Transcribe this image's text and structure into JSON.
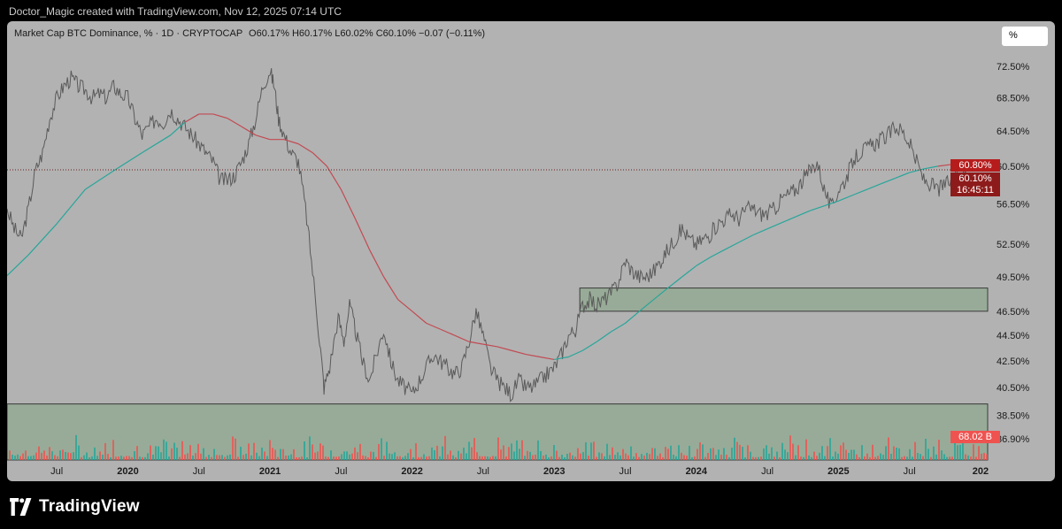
{
  "attribution": "Doctor_Magic created with TradingView.com, Nov 12, 2025 07:14 UTC",
  "legend": {
    "title": "Market Cap BTC Dominance, % · 1D · CRYPTOCAP",
    "ohlc": "O60.17% H60.17% L60.02% C60.10% −0.07 (−0.11%)"
  },
  "scale_button": "%",
  "price_tags": {
    "ma_value": "60.80%",
    "last_value": "60.10%",
    "countdown": "16:45:11",
    "volume_value": "68.02 B"
  },
  "footer": {
    "brand": "TradingView"
  },
  "colors": {
    "background": "#b2b2b2",
    "price_line": "#5a5a5a",
    "ma_up": "#26a69a",
    "ma_down": "#c24a52",
    "zone_fill": "#8fa88f",
    "tag_red": "#b71c1c",
    "vol_up": "#26a69a",
    "vol_down": "#ef5350"
  },
  "chart_data": {
    "type": "line",
    "title": "Market Cap BTC Dominance, % · 1D · CRYPTOCAP",
    "y_scale": "log",
    "ylim": [
      35.5,
      75
    ],
    "xlim": [
      2019.15,
      2026.05
    ],
    "y_ticks": [
      "72.50%",
      "68.50%",
      "64.50%",
      "60.50%",
      "56.50%",
      "52.50%",
      "49.50%",
      "46.50%",
      "44.50%",
      "42.50%",
      "40.50%",
      "38.50%",
      "36.90%"
    ],
    "y_tick_values": [
      72.5,
      68.5,
      64.5,
      60.5,
      56.5,
      52.5,
      49.5,
      46.5,
      44.5,
      42.5,
      40.5,
      38.5,
      36.9
    ],
    "x_ticks": [
      {
        "label": "Jul",
        "t": 2019.5,
        "bold": false
      },
      {
        "label": "2020",
        "t": 2020.0,
        "bold": true
      },
      {
        "label": "Jul",
        "t": 2020.5,
        "bold": false
      },
      {
        "label": "2021",
        "t": 2021.0,
        "bold": true
      },
      {
        "label": "Jul",
        "t": 2021.5,
        "bold": false
      },
      {
        "label": "2022",
        "t": 2022.0,
        "bold": true
      },
      {
        "label": "Jul",
        "t": 2022.5,
        "bold": false
      },
      {
        "label": "2023",
        "t": 2023.0,
        "bold": true
      },
      {
        "label": "Jul",
        "t": 2023.5,
        "bold": false
      },
      {
        "label": "2024",
        "t": 2024.0,
        "bold": true
      },
      {
        "label": "Jul",
        "t": 2024.5,
        "bold": false
      },
      {
        "label": "2025",
        "t": 2025.0,
        "bold": true
      },
      {
        "label": "Jul",
        "t": 2025.5,
        "bold": false
      },
      {
        "label": "202",
        "t": 2026.0,
        "bold": true
      }
    ],
    "last_price": 60.1,
    "price": [
      [
        2019.15,
        56
      ],
      [
        2019.2,
        54
      ],
      [
        2019.25,
        53
      ],
      [
        2019.3,
        56
      ],
      [
        2019.35,
        60
      ],
      [
        2019.4,
        62
      ],
      [
        2019.45,
        66
      ],
      [
        2019.5,
        68.5
      ],
      [
        2019.55,
        70
      ],
      [
        2019.6,
        71
      ],
      [
        2019.65,
        70
      ],
      [
        2019.7,
        69.5
      ],
      [
        2019.75,
        68.5
      ],
      [
        2019.8,
        69
      ],
      [
        2019.85,
        68.5
      ],
      [
        2019.9,
        70
      ],
      [
        2019.95,
        69
      ],
      [
        2020.0,
        68.5
      ],
      [
        2020.05,
        66
      ],
      [
        2020.1,
        64
      ],
      [
        2020.15,
        65
      ],
      [
        2020.2,
        66
      ],
      [
        2020.25,
        65.5
      ],
      [
        2020.3,
        67
      ],
      [
        2020.35,
        66
      ],
      [
        2020.4,
        65
      ],
      [
        2020.45,
        64
      ],
      [
        2020.5,
        63
      ],
      [
        2020.55,
        62
      ],
      [
        2020.6,
        61
      ],
      [
        2020.65,
        59
      ],
      [
        2020.7,
        59
      ],
      [
        2020.75,
        59.5
      ],
      [
        2020.8,
        61
      ],
      [
        2020.85,
        63
      ],
      [
        2020.9,
        66
      ],
      [
        2020.95,
        70
      ],
      [
        2021.0,
        72
      ],
      [
        2021.03,
        70
      ],
      [
        2021.06,
        66
      ],
      [
        2021.1,
        64
      ],
      [
        2021.15,
        62
      ],
      [
        2021.2,
        61
      ],
      [
        2021.25,
        56
      ],
      [
        2021.3,
        50
      ],
      [
        2021.35,
        44
      ],
      [
        2021.38,
        40.5
      ],
      [
        2021.42,
        42
      ],
      [
        2021.48,
        46
      ],
      [
        2021.52,
        44
      ],
      [
        2021.56,
        47
      ],
      [
        2021.6,
        45
      ],
      [
        2021.65,
        42.5
      ],
      [
        2021.7,
        41
      ],
      [
        2021.75,
        43
      ],
      [
        2021.8,
        45
      ],
      [
        2021.85,
        42.5
      ],
      [
        2021.9,
        41
      ],
      [
        2021.95,
        40.5
      ],
      [
        2022.0,
        40
      ],
      [
        2022.05,
        41
      ],
      [
        2022.1,
        42
      ],
      [
        2022.15,
        43
      ],
      [
        2022.2,
        42.5
      ],
      [
        2022.25,
        42
      ],
      [
        2022.3,
        41.5
      ],
      [
        2022.35,
        42
      ],
      [
        2022.4,
        44
      ],
      [
        2022.45,
        46.5
      ],
      [
        2022.5,
        44.5
      ],
      [
        2022.55,
        42
      ],
      [
        2022.6,
        41
      ],
      [
        2022.65,
        40.5
      ],
      [
        2022.7,
        40
      ],
      [
        2022.75,
        41
      ],
      [
        2022.8,
        40.5
      ],
      [
        2022.85,
        40.5
      ],
      [
        2022.9,
        41
      ],
      [
        2022.95,
        41.5
      ],
      [
        2023.0,
        42
      ],
      [
        2023.05,
        43
      ],
      [
        2023.1,
        44.5
      ],
      [
        2023.15,
        45
      ],
      [
        2023.2,
        47
      ],
      [
        2023.25,
        47.5
      ],
      [
        2023.3,
        47
      ],
      [
        2023.35,
        47.5
      ],
      [
        2023.4,
        48
      ],
      [
        2023.45,
        49
      ],
      [
        2023.5,
        51
      ],
      [
        2023.55,
        50
      ],
      [
        2023.6,
        49.5
      ],
      [
        2023.65,
        49.5
      ],
      [
        2023.7,
        50
      ],
      [
        2023.75,
        51
      ],
      [
        2023.8,
        52
      ],
      [
        2023.85,
        53
      ],
      [
        2023.9,
        54
      ],
      [
        2023.95,
        53
      ],
      [
        2024.0,
        52.5
      ],
      [
        2024.05,
        53
      ],
      [
        2024.1,
        53.5
      ],
      [
        2024.15,
        54.5
      ],
      [
        2024.2,
        55
      ],
      [
        2024.25,
        55.5
      ],
      [
        2024.3,
        55
      ],
      [
        2024.35,
        56
      ],
      [
        2024.4,
        56
      ],
      [
        2024.45,
        55.5
      ],
      [
        2024.5,
        55.5
      ],
      [
        2024.55,
        56
      ],
      [
        2024.6,
        57
      ],
      [
        2024.65,
        57.5
      ],
      [
        2024.7,
        58
      ],
      [
        2024.75,
        59
      ],
      [
        2024.8,
        60
      ],
      [
        2024.85,
        61
      ],
      [
        2024.9,
        58
      ],
      [
        2024.95,
        56
      ],
      [
        2025.0,
        58
      ],
      [
        2025.05,
        59
      ],
      [
        2025.1,
        61
      ],
      [
        2025.15,
        62
      ],
      [
        2025.2,
        62.5
      ],
      [
        2025.25,
        63
      ],
      [
        2025.3,
        63.5
      ],
      [
        2025.35,
        64
      ],
      [
        2025.4,
        65
      ],
      [
        2025.45,
        64.5
      ],
      [
        2025.5,
        63
      ],
      [
        2025.55,
        61
      ],
      [
        2025.6,
        59
      ],
      [
        2025.65,
        58.5
      ],
      [
        2025.7,
        58
      ],
      [
        2025.75,
        58.5
      ],
      [
        2025.8,
        59
      ],
      [
        2025.85,
        59.5
      ],
      [
        2025.9,
        60.1
      ]
    ],
    "ma": [
      [
        2019.15,
        49.6
      ],
      [
        2019.3,
        51.5
      ],
      [
        2019.5,
        54.5
      ],
      [
        2019.7,
        58
      ],
      [
        2019.9,
        60
      ],
      [
        2020.1,
        62
      ],
      [
        2020.3,
        64
      ],
      [
        2020.4,
        65.5
      ],
      [
        2020.5,
        66.5
      ],
      [
        2020.6,
        66.5
      ],
      [
        2020.7,
        66
      ],
      [
        2020.8,
        65
      ],
      [
        2020.9,
        64
      ],
      [
        2021.0,
        63.5
      ],
      [
        2021.1,
        63.5
      ],
      [
        2021.2,
        63
      ],
      [
        2021.3,
        62
      ],
      [
        2021.4,
        60.5
      ],
      [
        2021.5,
        58
      ],
      [
        2021.6,
        55
      ],
      [
        2021.7,
        52
      ],
      [
        2021.8,
        49.5
      ],
      [
        2021.9,
        47.5
      ],
      [
        2022.0,
        46.5
      ],
      [
        2022.1,
        45.5
      ],
      [
        2022.2,
        45
      ],
      [
        2022.3,
        44.5
      ],
      [
        2022.4,
        44
      ],
      [
        2022.5,
        43.8
      ],
      [
        2022.6,
        43.6
      ],
      [
        2022.7,
        43.3
      ],
      [
        2022.8,
        43
      ],
      [
        2022.9,
        42.8
      ],
      [
        2023.0,
        42.6
      ],
      [
        2023.1,
        42.8
      ],
      [
        2023.2,
        43.3
      ],
      [
        2023.3,
        44
      ],
      [
        2023.4,
        44.8
      ],
      [
        2023.5,
        45.5
      ],
      [
        2023.6,
        46.5
      ],
      [
        2023.7,
        47.5
      ],
      [
        2023.8,
        48.5
      ],
      [
        2023.9,
        49.5
      ],
      [
        2024.0,
        50.5
      ],
      [
        2024.1,
        51.3
      ],
      [
        2024.2,
        52
      ],
      [
        2024.3,
        52.7
      ],
      [
        2024.4,
        53.4
      ],
      [
        2024.5,
        54
      ],
      [
        2024.6,
        54.6
      ],
      [
        2024.7,
        55.2
      ],
      [
        2024.8,
        55.8
      ],
      [
        2024.9,
        56.3
      ],
      [
        2025.0,
        56.8
      ],
      [
        2025.1,
        57.4
      ],
      [
        2025.2,
        58
      ],
      [
        2025.3,
        58.6
      ],
      [
        2025.4,
        59.2
      ],
      [
        2025.5,
        59.8
      ],
      [
        2025.6,
        60.2
      ],
      [
        2025.7,
        60.5
      ],
      [
        2025.8,
        60.7
      ],
      [
        2025.9,
        60.8
      ]
    ],
    "ma_color_switch": [
      [
        2020.45,
        "down"
      ],
      [
        2023.02,
        "up"
      ],
      [
        2025.68,
        "down"
      ]
    ],
    "zones": [
      {
        "t0": 2023.18,
        "t1": 2026.05,
        "y0": 46.5,
        "y1": 48.5
      },
      {
        "t0": 2019.15,
        "t1": 2026.05,
        "y0": 35.5,
        "y1": 39.3
      }
    ]
  }
}
